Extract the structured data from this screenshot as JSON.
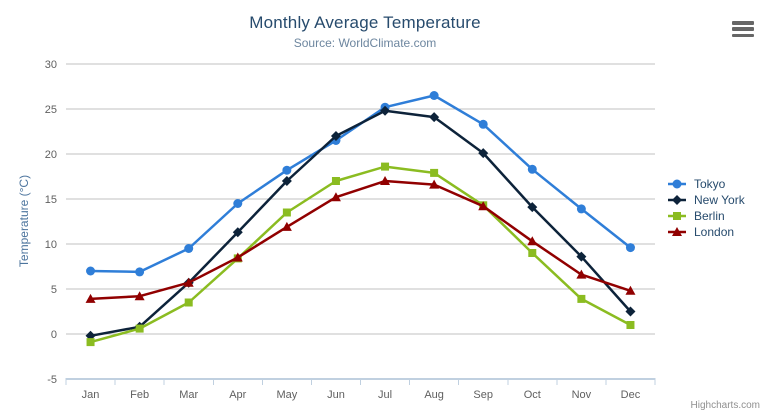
{
  "icons": {
    "export_menu": "hamburger-icon"
  },
  "credits": {
    "label": "Highcharts.com"
  },
  "colors": {
    "title": "#274b6d",
    "subtitle": "#6d869f",
    "axis_title": "#4d759e",
    "axis_labels": "#606060",
    "gridline": "#c0c0c0",
    "axis_line": "#c0d0e0",
    "legend_text": "#274b6d",
    "credits_text": "#909090",
    "export_icon": "#666666"
  },
  "chart_data": {
    "type": "line",
    "title": "Monthly Average Temperature",
    "subtitle": "Source: WorldClimate.com",
    "xlabel": "",
    "ylabel": "Temperature (°C)",
    "categories": [
      "Jan",
      "Feb",
      "Mar",
      "Apr",
      "May",
      "Jun",
      "Jul",
      "Aug",
      "Sep",
      "Oct",
      "Nov",
      "Dec"
    ],
    "ylim": [
      -5,
      30
    ],
    "y_ticks": [
      30,
      25,
      20,
      15,
      10,
      5,
      0,
      -5
    ],
    "grid": true,
    "legend_position": "right",
    "series": [
      {
        "name": "Tokyo",
        "color": "#2f7ed8",
        "marker": "circle",
        "values": [
          7.0,
          6.9,
          9.5,
          14.5,
          18.2,
          21.5,
          25.2,
          26.5,
          23.3,
          18.3,
          13.9,
          9.6
        ]
      },
      {
        "name": "New York",
        "color": "#0d233a",
        "marker": "diamond",
        "values": [
          -0.2,
          0.8,
          5.7,
          11.3,
          17.0,
          22.0,
          24.8,
          24.1,
          20.1,
          14.1,
          8.6,
          2.5
        ]
      },
      {
        "name": "Berlin",
        "color": "#8bbc21",
        "marker": "square",
        "values": [
          -0.9,
          0.6,
          3.5,
          8.4,
          13.5,
          17.0,
          18.6,
          17.9,
          14.3,
          9.0,
          3.9,
          1.0
        ]
      },
      {
        "name": "London",
        "color": "#910000",
        "marker": "triangle",
        "values": [
          3.9,
          4.2,
          5.7,
          8.5,
          11.9,
          15.2,
          17.0,
          16.6,
          14.2,
          10.3,
          6.6,
          4.8
        ]
      }
    ]
  }
}
